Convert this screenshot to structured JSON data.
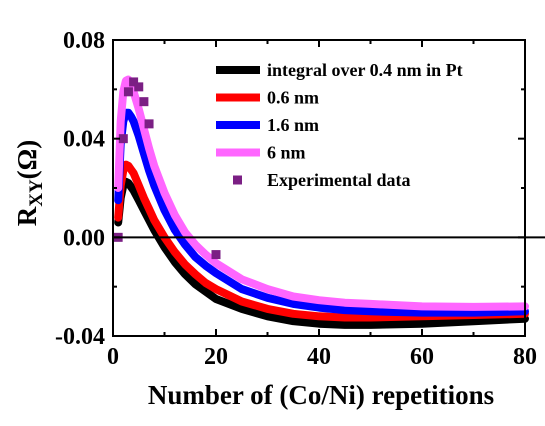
{
  "chart_data": {
    "type": "line",
    "title": "",
    "xlabel": "Number of (Co/Ni) repetitions",
    "ylabel": {
      "main": "R",
      "sub": "XY",
      "unit": "(Ω)"
    },
    "xlim": [
      0,
      80
    ],
    "ylim": [
      -0.04,
      0.08
    ],
    "xticks": [
      0,
      20,
      40,
      60,
      80
    ],
    "xtick_labels": [
      "0",
      "20",
      "40",
      "60",
      "80"
    ],
    "yticks": [
      -0.04,
      0.0,
      0.04,
      0.08
    ],
    "ytick_labels": [
      "-0.04",
      "0.00",
      "0.04",
      "0.08"
    ],
    "zero_line": true,
    "grid": false,
    "legend_position": "top-right",
    "series": [
      {
        "name": "integral over 0.4 nm in Pt",
        "color": "#000000",
        "kind": "line",
        "x": [
          1,
          1.5,
          2,
          2.5,
          3,
          3.5,
          4,
          5,
          6,
          7,
          8,
          10,
          12,
          14,
          16,
          18,
          20,
          25,
          30,
          35,
          40,
          45,
          50,
          60,
          70,
          80
        ],
        "y": [
          0.006,
          0.016,
          0.021,
          0.0225,
          0.022,
          0.0205,
          0.019,
          0.015,
          0.011,
          0.007,
          0.003,
          -0.004,
          -0.01,
          -0.015,
          -0.019,
          -0.022,
          -0.025,
          -0.029,
          -0.032,
          -0.034,
          -0.035,
          -0.0355,
          -0.0355,
          -0.035,
          -0.034,
          -0.033
        ]
      },
      {
        "name": "0.6 nm",
        "color": "#ff0000",
        "kind": "line",
        "x": [
          1,
          1.5,
          2,
          2.5,
          3,
          3.5,
          4,
          5,
          6,
          7,
          8,
          10,
          12,
          14,
          16,
          18,
          20,
          25,
          30,
          35,
          40,
          45,
          50,
          60,
          70,
          80
        ],
        "y": [
          0.008,
          0.021,
          0.027,
          0.0295,
          0.029,
          0.0275,
          0.026,
          0.021,
          0.016,
          0.0115,
          0.007,
          0.0,
          -0.006,
          -0.011,
          -0.015,
          -0.0185,
          -0.021,
          -0.026,
          -0.029,
          -0.031,
          -0.032,
          -0.0325,
          -0.0325,
          -0.032,
          -0.0315,
          -0.031
        ]
      },
      {
        "name": "1.6 nm",
        "color": "#0000ff",
        "kind": "line",
        "x": [
          1,
          1.5,
          2,
          2.5,
          3,
          3.5,
          4,
          5,
          6,
          7,
          8,
          10,
          12,
          14,
          16,
          18,
          20,
          25,
          30,
          35,
          40,
          45,
          50,
          60,
          70,
          80
        ],
        "y": [
          0.015,
          0.038,
          0.047,
          0.0505,
          0.0505,
          0.049,
          0.047,
          0.041,
          0.034,
          0.027,
          0.021,
          0.011,
          0.003,
          -0.003,
          -0.008,
          -0.0115,
          -0.0145,
          -0.021,
          -0.0245,
          -0.027,
          -0.0285,
          -0.0295,
          -0.03,
          -0.0305,
          -0.0305,
          -0.03
        ]
      },
      {
        "name": "6 nm",
        "color": "#ff66ff",
        "kind": "line",
        "x": [
          1,
          1.5,
          2,
          2.5,
          3,
          3.5,
          4,
          5,
          6,
          7,
          8,
          10,
          12,
          14,
          16,
          18,
          20,
          25,
          30,
          35,
          40,
          45,
          50,
          60,
          70,
          80
        ],
        "y": [
          0.02,
          0.047,
          0.059,
          0.0635,
          0.064,
          0.062,
          0.059,
          0.052,
          0.044,
          0.036,
          0.029,
          0.018,
          0.009,
          0.002,
          -0.003,
          -0.007,
          -0.0105,
          -0.017,
          -0.021,
          -0.024,
          -0.0255,
          -0.0265,
          -0.027,
          -0.028,
          -0.0282,
          -0.028
        ]
      },
      {
        "name": "Experimental data",
        "color": "#7b1f84",
        "kind": "scatter",
        "x": [
          1,
          2,
          3,
          4,
          5,
          6,
          7,
          20
        ],
        "y": [
          0.0,
          0.04,
          0.059,
          0.063,
          0.061,
          0.055,
          0.046,
          -0.007
        ]
      }
    ]
  }
}
